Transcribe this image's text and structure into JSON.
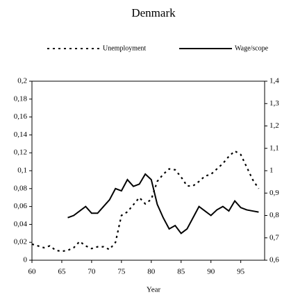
{
  "chart_data": {
    "type": "line",
    "title": "Denmark",
    "x_label": "Year",
    "x": [
      60,
      61,
      62,
      63,
      64,
      65,
      66,
      67,
      68,
      69,
      70,
      71,
      72,
      73,
      74,
      75,
      76,
      77,
      78,
      79,
      80,
      81,
      82,
      83,
      84,
      85,
      86,
      87,
      88,
      89,
      90,
      91,
      92,
      93,
      94,
      95,
      96,
      97,
      98
    ],
    "series": [
      {
        "name": "Unemployment",
        "color": "#000000",
        "dash": true,
        "values": [
          0.018,
          0.016,
          0.014,
          0.016,
          0.011,
          0.01,
          0.011,
          0.014,
          0.021,
          0.016,
          0.013,
          0.015,
          0.015,
          0.012,
          0.02,
          0.05,
          0.054,
          0.062,
          0.07,
          0.063,
          0.068,
          0.088,
          0.096,
          0.102,
          0.101,
          0.093,
          0.083,
          0.083,
          0.088,
          0.094,
          0.096,
          0.102,
          0.108,
          0.116,
          0.122,
          0.118,
          0.104,
          0.09,
          0.08
        ]
      },
      {
        "name": "Wage/scope",
        "color": "#000000",
        "dash": false,
        "axis": "y2",
        "values": [
          null,
          null,
          null,
          null,
          null,
          null,
          0.79,
          0.8,
          0.82,
          0.84,
          0.81,
          0.81,
          0.84,
          0.87,
          0.92,
          0.91,
          0.96,
          0.93,
          0.94,
          0.985,
          0.96,
          0.85,
          0.79,
          0.74,
          0.755,
          0.72,
          0.74,
          0.79,
          0.84,
          0.82,
          0.8,
          0.825,
          0.84,
          0.82,
          0.865,
          0.835,
          0.825,
          0.82,
          0.815
        ]
      }
    ],
    "xlim": [
      60,
      99
    ],
    "xticks": [
      60,
      65,
      70,
      75,
      80,
      85,
      90,
      95
    ],
    "ylim": [
      0,
      0.2
    ],
    "yticks": [
      0,
      {
        "value": 0.02,
        "label": "0,02"
      },
      {
        "value": 0.04,
        "label": "0,04"
      },
      {
        "value": 0.06,
        "label": "0,06"
      },
      {
        "value": 0.08,
        "label": "0,08"
      },
      {
        "value": 0.1,
        "label": "0,1"
      },
      {
        "value": 0.12,
        "label": "0,12"
      },
      {
        "value": 0.14,
        "label": "0,14"
      },
      {
        "value": 0.16,
        "label": "0,16"
      },
      {
        "value": 0.18,
        "label": "0,18"
      },
      {
        "value": 0.2,
        "label": "0,2"
      }
    ],
    "y2lim": [
      0.6,
      1.4
    ],
    "y2ticks": [
      {
        "value": 0.6,
        "label": "0,6"
      },
      {
        "value": 0.7,
        "label": "0,7"
      },
      {
        "value": 0.8,
        "label": "0,8"
      },
      {
        "value": 0.9,
        "label": "0,9"
      },
      1,
      {
        "value": 1.1,
        "label": "1,1"
      },
      {
        "value": 1.2,
        "label": "1,2"
      },
      {
        "value": 1.3,
        "label": "1,3"
      },
      {
        "value": 1.4,
        "label": "1,4"
      }
    ],
    "legend": "top",
    "grid": false
  }
}
